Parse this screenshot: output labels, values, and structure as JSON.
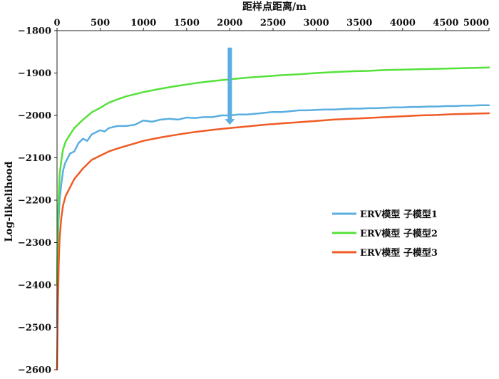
{
  "chart_data": {
    "type": "line",
    "xlabel": "距样点距离/m",
    "ylabel": "Log-likelihood",
    "xlim": [
      0,
      5000
    ],
    "ylim": [
      -2600,
      -1800
    ],
    "xticks": [
      0,
      500,
      1000,
      1500,
      2000,
      2500,
      3000,
      3500,
      4000,
      4500,
      5000
    ],
    "yticks": [
      -1800,
      -1900,
      -2000,
      -2100,
      -2200,
      -2300,
      -2400,
      -2500,
      -2600
    ],
    "x_axis_position": "top",
    "grid": false,
    "legend_position": "right-middle",
    "series": [
      {
        "name": "ERV模型 子模型1",
        "color": "#5aaee0",
        "x": [
          0,
          10,
          20,
          30,
          50,
          70,
          90,
          100,
          150,
          200,
          250,
          300,
          350,
          400,
          450,
          500,
          550,
          600,
          700,
          800,
          900,
          1000,
          1100,
          1200,
          1300,
          1400,
          1500,
          1600,
          1700,
          1800,
          1900,
          2000,
          2100,
          2200,
          2300,
          2400,
          2500,
          2600,
          2700,
          2800,
          2900,
          3000,
          3100,
          3200,
          3300,
          3400,
          3500,
          3600,
          3700,
          3800,
          3900,
          4000,
          4100,
          4200,
          4300,
          4400,
          4500,
          4600,
          4700,
          4800,
          4900,
          5000
        ],
        "y": [
          -2500,
          -2300,
          -2240,
          -2200,
          -2160,
          -2130,
          -2115,
          -2110,
          -2090,
          -2085,
          -2065,
          -2055,
          -2060,
          -2045,
          -2040,
          -2035,
          -2038,
          -2030,
          -2025,
          -2025,
          -2022,
          -2012,
          -2015,
          -2010,
          -2008,
          -2010,
          -2005,
          -2006,
          -2004,
          -2004,
          -2000,
          -2000,
          -1998,
          -1998,
          -1996,
          -1994,
          -1992,
          -1992,
          -1990,
          -1988,
          -1988,
          -1987,
          -1986,
          -1986,
          -1985,
          -1984,
          -1984,
          -1983,
          -1983,
          -1982,
          -1981,
          -1981,
          -1980,
          -1980,
          -1979,
          -1979,
          -1978,
          -1978,
          -1977,
          -1977,
          -1976,
          -1976
        ]
      },
      {
        "name": "ERV模型 子模型2",
        "color": "#55e13a",
        "x": [
          0,
          10,
          20,
          30,
          50,
          70,
          100,
          150,
          200,
          300,
          400,
          500,
          600,
          700,
          800,
          900,
          1000,
          1200,
          1400,
          1600,
          1800,
          2000,
          2200,
          2400,
          2600,
          2800,
          3000,
          3200,
          3400,
          3600,
          3800,
          4000,
          4200,
          4400,
          4600,
          4800,
          5000
        ],
        "y": [
          -2400,
          -2250,
          -2190,
          -2140,
          -2105,
          -2080,
          -2062,
          -2045,
          -2030,
          -2010,
          -1993,
          -1982,
          -1970,
          -1962,
          -1955,
          -1950,
          -1945,
          -1937,
          -1930,
          -1924,
          -1919,
          -1915,
          -1911,
          -1908,
          -1905,
          -1903,
          -1900,
          -1898,
          -1896,
          -1895,
          -1893,
          -1892,
          -1891,
          -1890,
          -1889,
          -1888,
          -1887
        ]
      },
      {
        "name": "ERV模型 子模型3",
        "color": "#f05a24",
        "x": [
          0,
          10,
          20,
          30,
          50,
          70,
          100,
          150,
          200,
          300,
          400,
          500,
          600,
          700,
          800,
          900,
          1000,
          1200,
          1400,
          1600,
          1800,
          2000,
          2200,
          2400,
          2600,
          2800,
          3000,
          3200,
          3400,
          3600,
          3800,
          4000,
          4200,
          4400,
          4600,
          4800,
          5000
        ],
        "y": [
          -2600,
          -2450,
          -2350,
          -2290,
          -2240,
          -2212,
          -2190,
          -2170,
          -2150,
          -2125,
          -2105,
          -2095,
          -2085,
          -2078,
          -2072,
          -2066,
          -2060,
          -2052,
          -2045,
          -2039,
          -2034,
          -2030,
          -2026,
          -2022,
          -2019,
          -2016,
          -2013,
          -2010,
          -2008,
          -2006,
          -2004,
          -2002,
          -2000,
          -1999,
          -1997,
          -1996,
          -1995
        ]
      }
    ],
    "annotations": [
      {
        "type": "arrow",
        "x": 2000,
        "y_from": -1840,
        "y_to": -2022,
        "color": "#5aaee0"
      }
    ]
  }
}
